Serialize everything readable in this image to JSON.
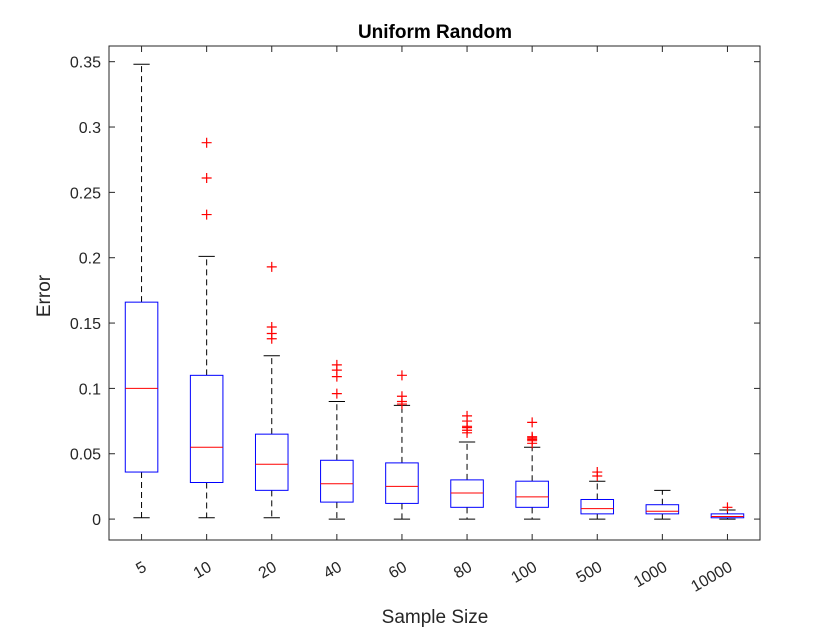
{
  "chart_data": {
    "type": "box",
    "title": "Uniform Random",
    "xlabel": "Sample Size",
    "ylabel": "Error",
    "categories": [
      "5",
      "10",
      "20",
      "40",
      "60",
      "80",
      "100",
      "500",
      "1000",
      "10000"
    ],
    "ylim": [
      -0.016,
      0.362
    ],
    "yticks": [
      0,
      0.05,
      0.1,
      0.15,
      0.2,
      0.25,
      0.3,
      0.35
    ],
    "ytick_labels": [
      "0",
      "0.05",
      "0.1",
      "0.15",
      "0.2",
      "0.25",
      "0.3",
      "0.35"
    ],
    "grid": false,
    "colors": {
      "box": "#0000ff",
      "median": "#ff0000",
      "whisker": "#000000",
      "outlier": "#ff0000"
    },
    "boxes": [
      {
        "category": "5",
        "whisker_low": 0.001,
        "q1": 0.036,
        "median": 0.1,
        "q3": 0.166,
        "whisker_high": 0.348,
        "outliers": []
      },
      {
        "category": "10",
        "whisker_low": 0.001,
        "q1": 0.028,
        "median": 0.055,
        "q3": 0.11,
        "whisker_high": 0.201,
        "outliers": [
          0.233,
          0.261,
          0.288
        ]
      },
      {
        "category": "20",
        "whisker_low": 0.001,
        "q1": 0.022,
        "median": 0.042,
        "q3": 0.065,
        "whisker_high": 0.125,
        "outliers": [
          0.138,
          0.142,
          0.147,
          0.193
        ]
      },
      {
        "category": "40",
        "whisker_low": 0.0,
        "q1": 0.013,
        "median": 0.027,
        "q3": 0.045,
        "whisker_high": 0.09,
        "outliers": [
          0.096,
          0.109,
          0.114,
          0.118
        ]
      },
      {
        "category": "60",
        "whisker_low": 0.0,
        "q1": 0.012,
        "median": 0.025,
        "q3": 0.043,
        "whisker_high": 0.087,
        "outliers": [
          0.088,
          0.09,
          0.094,
          0.11
        ]
      },
      {
        "category": "80",
        "whisker_low": 0.0,
        "q1": 0.009,
        "median": 0.02,
        "q3": 0.03,
        "whisker_high": 0.059,
        "outliers": [
          0.066,
          0.068,
          0.07,
          0.071,
          0.075,
          0.079
        ]
      },
      {
        "category": "100",
        "whisker_low": 0.0,
        "q1": 0.009,
        "median": 0.017,
        "q3": 0.029,
        "whisker_high": 0.055,
        "outliers": [
          0.058,
          0.06,
          0.061,
          0.062,
          0.063,
          0.074
        ]
      },
      {
        "category": "500",
        "whisker_low": 0.0,
        "q1": 0.004,
        "median": 0.008,
        "q3": 0.015,
        "whisker_high": 0.029,
        "outliers": [
          0.033,
          0.036
        ]
      },
      {
        "category": "1000",
        "whisker_low": 0.0,
        "q1": 0.004,
        "median": 0.006,
        "q3": 0.011,
        "whisker_high": 0.022,
        "outliers": []
      },
      {
        "category": "10000",
        "whisker_low": 0.0,
        "q1": 0.001,
        "median": 0.002,
        "q3": 0.004,
        "whisker_high": 0.007,
        "outliers": [
          0.009
        ]
      }
    ]
  }
}
